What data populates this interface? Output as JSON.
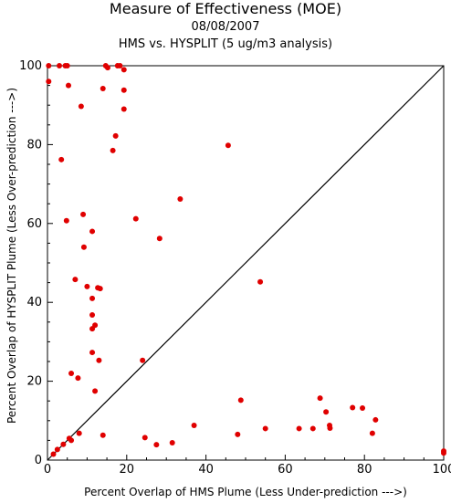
{
  "chart_data": {
    "type": "scatter",
    "title": "Measure of Effectiveness (MOE)",
    "date": "08/08/2007",
    "subtitle": "HMS vs. HYSPLIT  (5 ug/m3 analysis)",
    "xlabel": "Percent Overlap of HMS Plume (Less Under-prediction --->)",
    "ylabel": "Percent Overlap of HYSPLIT Plume (Less Over-prediction --->)",
    "xlim": [
      0,
      100
    ],
    "ylim": [
      0,
      100
    ],
    "x_ticks": [
      "0",
      "20",
      "40",
      "60",
      "80",
      "100"
    ],
    "y_ticks": [
      "0",
      "20",
      "40",
      "60",
      "80",
      "100"
    ],
    "marker_color": "#e00000",
    "diagonal_line": true,
    "grid": false,
    "points": [
      [
        0.3,
        100
      ],
      [
        0.3,
        96
      ],
      [
        3,
        100
      ],
      [
        4.5,
        100
      ],
      [
        5,
        100
      ],
      [
        5.3,
        95
      ],
      [
        14.7,
        100
      ],
      [
        15.2,
        99.5
      ],
      [
        17.7,
        100
      ],
      [
        18.3,
        100
      ],
      [
        19.3,
        99
      ],
      [
        14,
        94.2
      ],
      [
        19.3,
        93.8
      ],
      [
        8.5,
        89.7
      ],
      [
        19.3,
        89
      ],
      [
        17.2,
        82.2
      ],
      [
        16.5,
        78.5
      ],
      [
        3.5,
        76.2
      ],
      [
        45.6,
        79.8
      ],
      [
        33.5,
        66.2
      ],
      [
        22.3,
        61.2
      ],
      [
        28.3,
        56.2
      ],
      [
        9,
        62.3
      ],
      [
        4.8,
        60.7
      ],
      [
        11.3,
        58
      ],
      [
        9.2,
        54
      ],
      [
        53.7,
        45.2
      ],
      [
        7,
        45.8
      ],
      [
        10,
        44
      ],
      [
        12.7,
        43.7
      ],
      [
        13.3,
        43.5
      ],
      [
        11.3,
        41
      ],
      [
        11.3,
        36.8
      ],
      [
        12,
        34.2
      ],
      [
        11.3,
        33.3
      ],
      [
        11.3,
        27.3
      ],
      [
        13,
        25.3
      ],
      [
        24,
        25.3
      ],
      [
        6,
        22
      ],
      [
        7.7,
        20.8
      ],
      [
        12,
        17.5
      ],
      [
        48.8,
        15.2
      ],
      [
        68.8,
        15.7
      ],
      [
        77,
        13.3
      ],
      [
        79.5,
        13.2
      ],
      [
        70.3,
        12.2
      ],
      [
        82.8,
        10.2
      ],
      [
        37,
        8.8
      ],
      [
        71.2,
        8.8
      ],
      [
        71.3,
        8.1
      ],
      [
        55,
        8
      ],
      [
        63.5,
        8
      ],
      [
        67,
        8
      ],
      [
        82,
        6.8
      ],
      [
        8,
        6.8
      ],
      [
        48,
        6.5
      ],
      [
        14,
        6.3
      ],
      [
        24.6,
        5.7
      ],
      [
        31.5,
        4.4
      ],
      [
        27.5,
        3.9
      ],
      [
        5.5,
        5.5
      ],
      [
        6,
        5
      ],
      [
        4,
        4
      ],
      [
        2.5,
        2.7
      ],
      [
        1.5,
        1.5
      ],
      [
        100,
        2.3
      ],
      [
        100,
        1.8
      ]
    ]
  }
}
